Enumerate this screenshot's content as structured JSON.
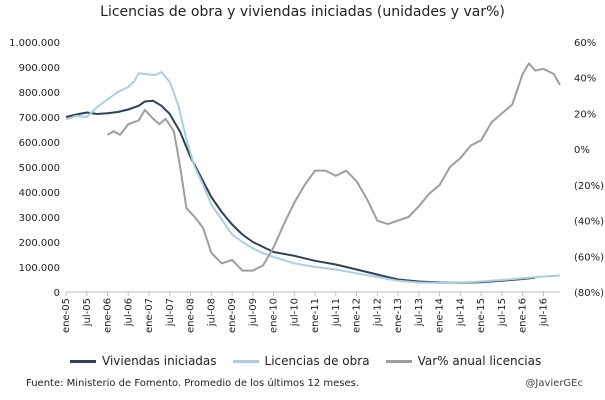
{
  "chart_data": {
    "type": "line",
    "title": "Licencias de obra y viviendas iniciadas (unidades y var%)",
    "y_left": {
      "min": 0,
      "max": 1000000,
      "ticks": [
        "0",
        "100.000",
        "200.000",
        "300.000",
        "400.000",
        "500.000",
        "600.000",
        "700.000",
        "800.000",
        "900.000",
        "1.000.000"
      ]
    },
    "y_right": {
      "min": -80,
      "max": 60,
      "ticks": [
        "(80%)",
        "(60%)",
        "(40%)",
        "(20%)",
        "0%",
        "20%",
        "40%",
        "60%"
      ]
    },
    "x_range": [
      2005.0,
      2016.9
    ],
    "x_ticks": [
      {
        "label": "ene-05",
        "t": 2005.0
      },
      {
        "label": "jul-05",
        "t": 2005.5
      },
      {
        "label": "ene-06",
        "t": 2006.0
      },
      {
        "label": "jul-06",
        "t": 2006.5
      },
      {
        "label": "ene-07",
        "t": 2007.0
      },
      {
        "label": "jul-07",
        "t": 2007.5
      },
      {
        "label": "ene-08",
        "t": 2008.0
      },
      {
        "label": "jul-08",
        "t": 2008.5
      },
      {
        "label": "ene-09",
        "t": 2009.0
      },
      {
        "label": "jul-09",
        "t": 2009.5
      },
      {
        "label": "ene-10",
        "t": 2010.0
      },
      {
        "label": "jul-10",
        "t": 2010.5
      },
      {
        "label": "ene-11",
        "t": 2011.0
      },
      {
        "label": "jul-11",
        "t": 2011.5
      },
      {
        "label": "ene-12",
        "t": 2012.0
      },
      {
        "label": "jul-12",
        "t": 2012.5
      },
      {
        "label": "ene-13",
        "t": 2013.0
      },
      {
        "label": "jul-13",
        "t": 2013.5
      },
      {
        "label": "ene-14",
        "t": 2014.0
      },
      {
        "label": "jul-14",
        "t": 2014.5
      },
      {
        "label": "ene-15",
        "t": 2015.0
      },
      {
        "label": "jul-15",
        "t": 2015.5
      },
      {
        "label": "ene-16",
        "t": 2016.0
      },
      {
        "label": "jul-16",
        "t": 2016.5
      }
    ],
    "series": [
      {
        "name": "Viviendas iniciadas",
        "axis": "left",
        "color": "#2e4057",
        "points": [
          [
            2005.0,
            700000
          ],
          [
            2005.25,
            710000
          ],
          [
            2005.5,
            718000
          ],
          [
            2005.75,
            712000
          ],
          [
            2006.0,
            715000
          ],
          [
            2006.25,
            720000
          ],
          [
            2006.5,
            730000
          ],
          [
            2006.75,
            745000
          ],
          [
            2006.9,
            762000
          ],
          [
            2007.1,
            765000
          ],
          [
            2007.3,
            745000
          ],
          [
            2007.5,
            712000
          ],
          [
            2007.75,
            640000
          ],
          [
            2008.0,
            540000
          ],
          [
            2008.25,
            460000
          ],
          [
            2008.5,
            380000
          ],
          [
            2008.75,
            320000
          ],
          [
            2009.0,
            270000
          ],
          [
            2009.25,
            230000
          ],
          [
            2009.5,
            200000
          ],
          [
            2009.75,
            180000
          ],
          [
            2010.0,
            160000
          ],
          [
            2010.5,
            145000
          ],
          [
            2011.0,
            125000
          ],
          [
            2011.5,
            110000
          ],
          [
            2012.0,
            90000
          ],
          [
            2012.5,
            70000
          ],
          [
            2013.0,
            50000
          ],
          [
            2013.5,
            42000
          ],
          [
            2014.0,
            38000
          ],
          [
            2014.5,
            37000
          ],
          [
            2015.0,
            39000
          ],
          [
            2015.5,
            45000
          ],
          [
            2016.0,
            52000
          ],
          [
            2016.3,
            57000
          ]
        ]
      },
      {
        "name": "Licencias de obra",
        "axis": "left",
        "color": "#a8cfe2",
        "points": [
          [
            2005.0,
            690000
          ],
          [
            2005.25,
            705000
          ],
          [
            2005.5,
            700000
          ],
          [
            2005.75,
            740000
          ],
          [
            2006.0,
            770000
          ],
          [
            2006.25,
            800000
          ],
          [
            2006.5,
            820000
          ],
          [
            2006.65,
            845000
          ],
          [
            2006.75,
            875000
          ],
          [
            2007.0,
            870000
          ],
          [
            2007.15,
            868000
          ],
          [
            2007.3,
            880000
          ],
          [
            2007.5,
            840000
          ],
          [
            2007.7,
            750000
          ],
          [
            2007.9,
            610000
          ],
          [
            2008.1,
            500000
          ],
          [
            2008.3,
            430000
          ],
          [
            2008.5,
            350000
          ],
          [
            2008.75,
            290000
          ],
          [
            2009.0,
            230000
          ],
          [
            2009.25,
            200000
          ],
          [
            2009.5,
            175000
          ],
          [
            2009.75,
            155000
          ],
          [
            2010.0,
            140000
          ],
          [
            2010.5,
            115000
          ],
          [
            2011.0,
            100000
          ],
          [
            2011.5,
            90000
          ],
          [
            2012.0,
            75000
          ],
          [
            2012.5,
            60000
          ],
          [
            2013.0,
            45000
          ],
          [
            2013.5,
            38000
          ],
          [
            2014.0,
            36000
          ],
          [
            2014.5,
            38000
          ],
          [
            2015.0,
            42000
          ],
          [
            2015.5,
            48000
          ],
          [
            2016.0,
            55000
          ],
          [
            2016.5,
            62000
          ],
          [
            2016.9,
            66000
          ]
        ]
      },
      {
        "name": "Var% anual licencias",
        "axis": "right",
        "color": "#9e9e9e",
        "points": [
          [
            2006.0,
            8
          ],
          [
            2006.15,
            10
          ],
          [
            2006.3,
            8
          ],
          [
            2006.5,
            14
          ],
          [
            2006.75,
            16
          ],
          [
            2006.9,
            22
          ],
          [
            2007.1,
            17
          ],
          [
            2007.25,
            14
          ],
          [
            2007.4,
            17
          ],
          [
            2007.6,
            10
          ],
          [
            2007.75,
            -10
          ],
          [
            2007.9,
            -33
          ],
          [
            2008.1,
            -38
          ],
          [
            2008.3,
            -44
          ],
          [
            2008.5,
            -58
          ],
          [
            2008.75,
            -64
          ],
          [
            2009.0,
            -62
          ],
          [
            2009.25,
            -68
          ],
          [
            2009.5,
            -68
          ],
          [
            2009.75,
            -65
          ],
          [
            2010.0,
            -55
          ],
          [
            2010.25,
            -42
          ],
          [
            2010.5,
            -30
          ],
          [
            2010.75,
            -20
          ],
          [
            2011.0,
            -12
          ],
          [
            2011.25,
            -12
          ],
          [
            2011.5,
            -15
          ],
          [
            2011.75,
            -12
          ],
          [
            2012.0,
            -18
          ],
          [
            2012.25,
            -28
          ],
          [
            2012.5,
            -40
          ],
          [
            2012.75,
            -42
          ],
          [
            2013.0,
            -40
          ],
          [
            2013.25,
            -38
          ],
          [
            2013.5,
            -32
          ],
          [
            2013.75,
            -25
          ],
          [
            2014.0,
            -20
          ],
          [
            2014.25,
            -10
          ],
          [
            2014.5,
            -5
          ],
          [
            2014.75,
            2
          ],
          [
            2015.0,
            5
          ],
          [
            2015.25,
            15
          ],
          [
            2015.5,
            20
          ],
          [
            2015.75,
            25
          ],
          [
            2016.0,
            42
          ],
          [
            2016.15,
            48
          ],
          [
            2016.3,
            44
          ],
          [
            2016.5,
            45
          ],
          [
            2016.75,
            42
          ],
          [
            2016.9,
            36
          ]
        ]
      }
    ],
    "grid": false,
    "legend": "bottom"
  },
  "footer": {
    "source": "Fuente: Ministerio de Fomento. Promedio de los últimos 12 meses.",
    "handle": "@JavierGEc"
  }
}
